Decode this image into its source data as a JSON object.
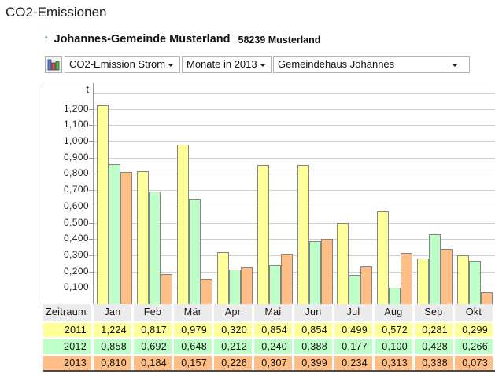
{
  "page": {
    "title": "CO2-Emissionen"
  },
  "header": {
    "up_arrow_icon": "↑",
    "site_name": "Johannes-Gemeinde Musterland",
    "site_postal": "58239 Musterland"
  },
  "toolbar": {
    "chart_type_icon": "bar-chart-icon",
    "dropdowns": [
      {
        "value": "CO2-Emission Strom"
      },
      {
        "value": "Monate in 2013"
      },
      {
        "value": "Gemeindehaus Johannes"
      }
    ]
  },
  "chart_data": {
    "type": "bar",
    "title": "",
    "unit_label": "t",
    "categories": [
      "Jan",
      "Feb",
      "Mär",
      "Apr",
      "Mai",
      "Jun",
      "Jul",
      "Aug",
      "Sep",
      "Okt"
    ],
    "series": [
      {
        "name": "2011",
        "color": "#ffff99",
        "values": [
          1.224,
          0.817,
          0.979,
          0.32,
          0.854,
          0.854,
          0.499,
          0.572,
          0.281,
          0.299
        ]
      },
      {
        "name": "2012",
        "color": "#bdffc6",
        "values": [
          0.858,
          0.692,
          0.648,
          0.212,
          0.24,
          0.388,
          0.177,
          0.1,
          0.428,
          0.266
        ]
      },
      {
        "name": "2013",
        "color": "#ffbe86",
        "values": [
          0.81,
          0.184,
          0.157,
          0.226,
          0.307,
          0.399,
          0.234,
          0.313,
          0.338,
          0.073
        ]
      }
    ],
    "ylim": [
      0,
      1.3
    ],
    "ytick_step": 0.1,
    "ytick_labels": [
      "0,100",
      "0,200",
      "0,300",
      "0,400",
      "0,500",
      "0,600",
      "0,700",
      "0,800",
      "0,900",
      "1,000",
      "1,100",
      "1,200"
    ],
    "grid": true,
    "legend_position": "table-below",
    "note": "chart truncated at right image edge after Okt"
  },
  "table": {
    "corner_label": "Zeitraum",
    "columns": [
      "Jan",
      "Feb",
      "Mär",
      "Apr",
      "Mai",
      "Jun",
      "Jul",
      "Aug",
      "Sep",
      "Okt"
    ],
    "rows": [
      {
        "label": "2011",
        "color": "#ffff99",
        "values": [
          "1,224",
          "0,817",
          "0,979",
          "0,320",
          "0,854",
          "0,854",
          "0,499",
          "0,572",
          "0,281",
          "0,299"
        ]
      },
      {
        "label": "2012",
        "color": "#bdffc6",
        "values": [
          "0,858",
          "0,692",
          "0,648",
          "0,212",
          "0,240",
          "0,388",
          "0,177",
          "0,100",
          "0,428",
          "0,266"
        ]
      },
      {
        "label": "2013",
        "color": "#ffbe86",
        "values": [
          "0,810",
          "0,184",
          "0,157",
          "0,226",
          "0,307",
          "0,399",
          "0,234",
          "0,313",
          "0,338",
          "0,073"
        ]
      }
    ]
  }
}
